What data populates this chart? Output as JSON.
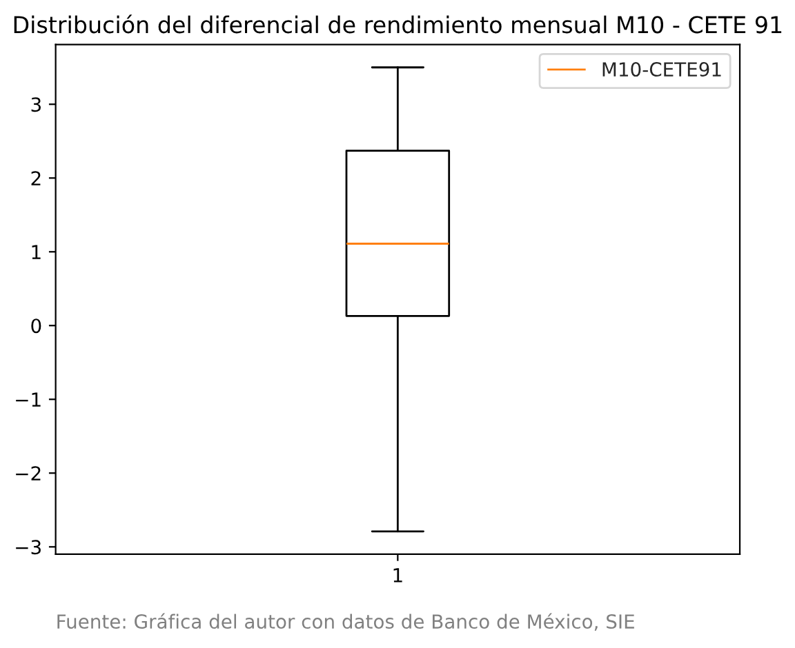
{
  "chart_data": {
    "type": "box",
    "title": "Distribución del diferencial de rendimiento mensual M10 - CETE 91",
    "categories": [
      "1"
    ],
    "series": [
      {
        "name": "M10-CETE91",
        "color": "#000000",
        "boxes": [
          {
            "low": -2.79,
            "q1": 0.13,
            "median": 1.11,
            "q3": 2.37,
            "high": 3.5
          }
        ]
      }
    ],
    "ylim": [
      -3.1,
      3.81
    ],
    "yticks": [
      -3,
      -2,
      -1,
      0,
      1,
      2,
      3
    ],
    "legend": "top right",
    "annotations": [
      "Fuente: Gráfica del autor con datos de Banco de México, SIE"
    ]
  }
}
